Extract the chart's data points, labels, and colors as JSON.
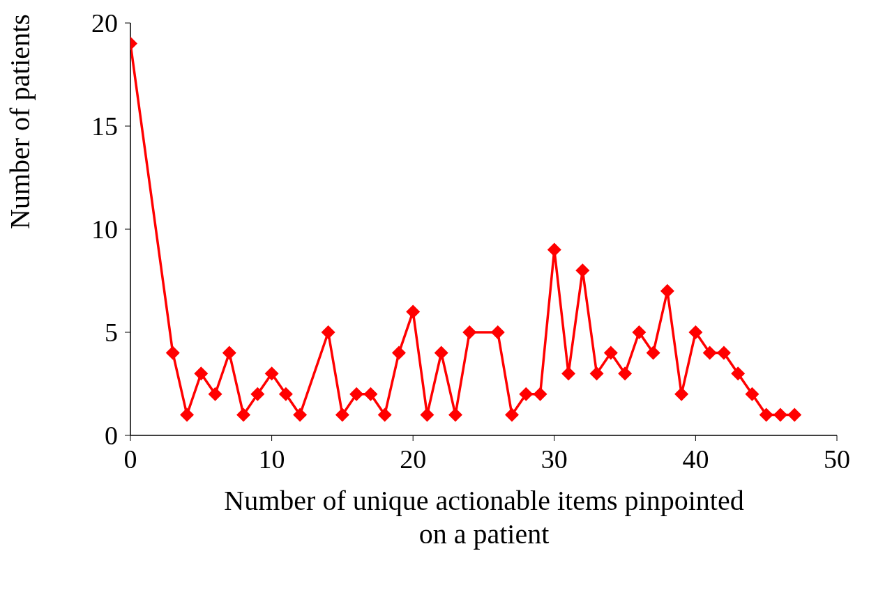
{
  "chart_data": {
    "type": "line",
    "xlabel": "Number of unique actionable items pinpointed on a patient",
    "ylabel": "Number of patients",
    "series": [
      {
        "color": "#ff0000",
        "x": [
          0,
          3,
          4,
          5,
          6,
          7,
          8,
          9,
          10,
          11,
          12,
          14,
          15,
          16,
          17,
          18,
          19,
          20,
          21,
          22,
          23,
          24,
          26,
          27,
          28,
          29,
          30,
          31,
          32,
          33,
          34,
          35,
          36,
          37,
          38,
          39,
          40,
          41,
          42,
          43,
          44,
          45,
          46,
          47
        ],
        "values": [
          19,
          4,
          1,
          3,
          2,
          4,
          1,
          2,
          3,
          2,
          1,
          5,
          1,
          2,
          2,
          1,
          4,
          6,
          1,
          4,
          1,
          5,
          5,
          1,
          2,
          2,
          9,
          3,
          8,
          3,
          4,
          3,
          5,
          4,
          7,
          2,
          5,
          4,
          4,
          3,
          2,
          1,
          1,
          1
        ]
      }
    ],
    "xlim": [
      0,
      50
    ],
    "xticks": [
      0,
      10,
      20,
      30,
      40,
      50
    ],
    "ylim": [
      0,
      20
    ],
    "yticks": [
      0,
      5,
      10,
      15,
      20
    ],
    "grid": false,
    "legend": false,
    "marker": "diamond",
    "line_style": "solid"
  }
}
